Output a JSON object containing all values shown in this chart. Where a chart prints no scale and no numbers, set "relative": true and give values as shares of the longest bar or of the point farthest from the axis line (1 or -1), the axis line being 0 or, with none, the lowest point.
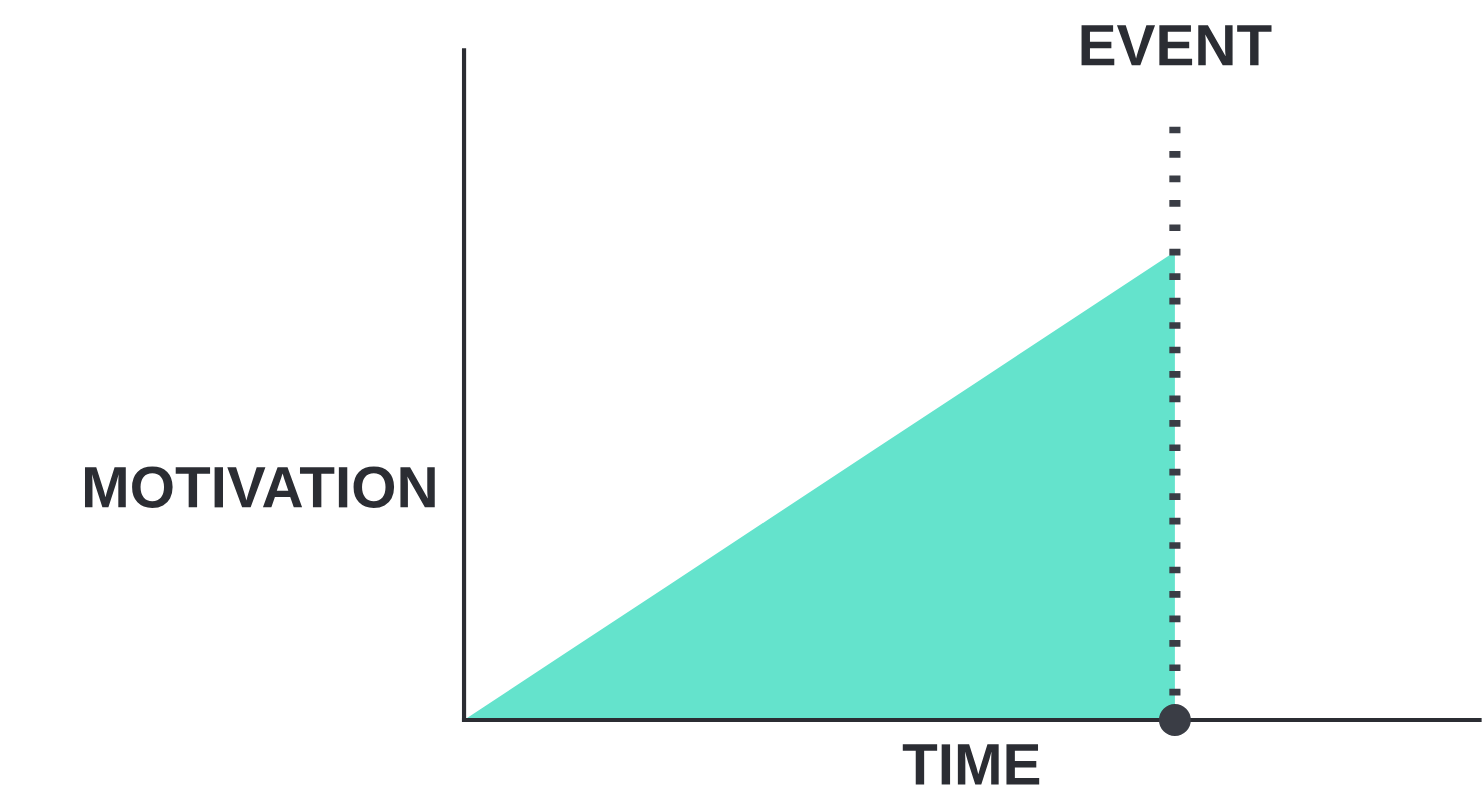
{
  "chart_data": {
    "type": "area",
    "relative": true,
    "xlabel": "TIME",
    "ylabel": "MOTIVATION",
    "categories": [
      null,
      null,
      null,
      null,
      null,
      null,
      null,
      null
    ],
    "series": [
      {
        "color": "#64e3cc",
        "values": [
          0,
          0.1429,
          0.2857,
          0.4286,
          0.5714,
          0.7143,
          0.8571,
          1
        ]
      }
    ],
    "annotations": [
      "EVENT"
    ]
  }
}
